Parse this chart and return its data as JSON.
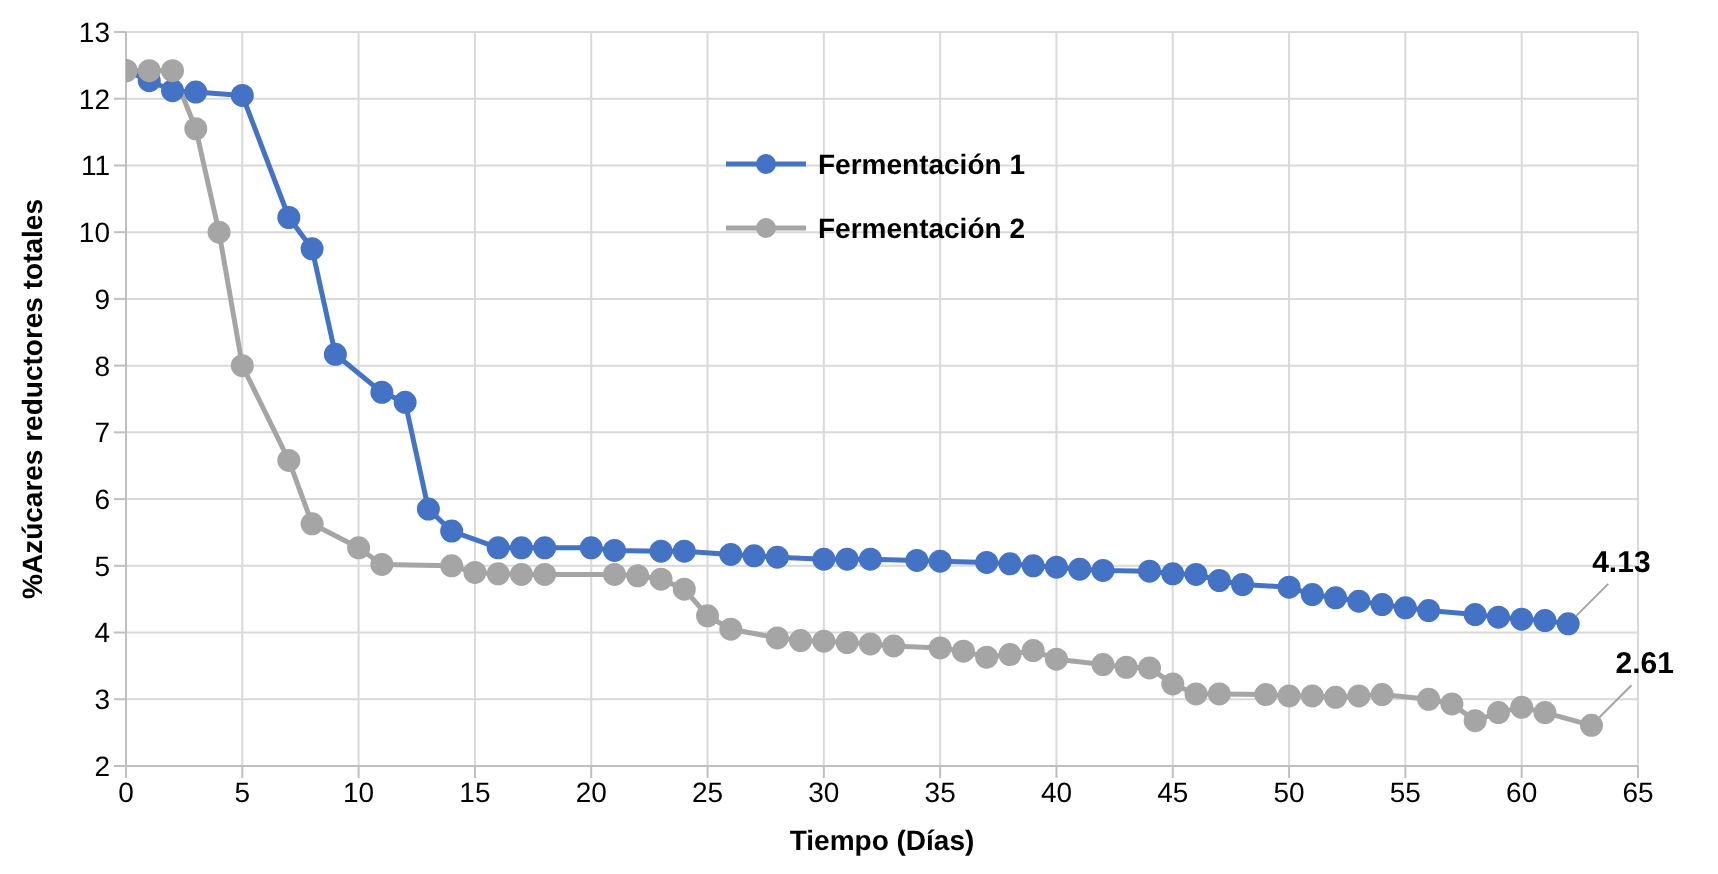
{
  "chart_data": {
    "type": "line",
    "xlabel": "Tiempo (Días)",
    "ylabel": "%Azúcares reductores totales",
    "xlim": [
      0,
      65
    ],
    "xticks": [
      0,
      5,
      10,
      15,
      20,
      25,
      30,
      35,
      40,
      45,
      50,
      55,
      60,
      65
    ],
    "ylim": [
      2,
      13
    ],
    "yticks": [
      2,
      3,
      4,
      5,
      6,
      7,
      8,
      9,
      10,
      11,
      12,
      13
    ],
    "grid": true,
    "legend": "top",
    "marker": "circle",
    "line_style": "solid",
    "series": [
      {
        "name": "Fermentación 1",
        "color": "#4472c4",
        "x": [
          0,
          1,
          2,
          3,
          5,
          7,
          8,
          9,
          11,
          12,
          13,
          14,
          16,
          17,
          18,
          20,
          21,
          23,
          24,
          26,
          27,
          28,
          30,
          31,
          32,
          34,
          35,
          37,
          38,
          39,
          40,
          41,
          42,
          44,
          45,
          46,
          47,
          48,
          50,
          51,
          52,
          53,
          54,
          55,
          56,
          58,
          59,
          60,
          61,
          62
        ],
        "values": [
          12.42,
          12.27,
          12.12,
          12.1,
          12.05,
          10.22,
          9.75,
          8.17,
          7.6,
          7.45,
          5.85,
          5.52,
          5.27,
          5.27,
          5.27,
          5.27,
          5.23,
          5.22,
          5.22,
          5.17,
          5.15,
          5.13,
          5.1,
          5.1,
          5.1,
          5.08,
          5.07,
          5.05,
          5.03,
          5.0,
          4.98,
          4.95,
          4.93,
          4.92,
          4.88,
          4.87,
          4.78,
          4.72,
          4.68,
          4.57,
          4.52,
          4.47,
          4.42,
          4.37,
          4.33,
          4.27,
          4.23,
          4.2,
          4.18,
          4.13
        ]
      },
      {
        "name": "Fermentación 2",
        "color": "#a5a5a5",
        "x": [
          0,
          1,
          2,
          3,
          4,
          5,
          7,
          8,
          10,
          11,
          14,
          15,
          16,
          17,
          18,
          21,
          22,
          23,
          24,
          25,
          26,
          28,
          29,
          30,
          31,
          32,
          33,
          35,
          36,
          37,
          38,
          39,
          40,
          42,
          43,
          44,
          45,
          46,
          47,
          49,
          50,
          51,
          52,
          53,
          54,
          56,
          57,
          58,
          59,
          60,
          61,
          63
        ],
        "values": [
          12.42,
          12.42,
          12.42,
          11.55,
          10.0,
          8.0,
          6.58,
          5.63,
          5.27,
          5.02,
          5.0,
          4.9,
          4.88,
          4.87,
          4.87,
          4.87,
          4.85,
          4.8,
          4.65,
          4.25,
          4.05,
          3.92,
          3.88,
          3.87,
          3.85,
          3.83,
          3.8,
          3.77,
          3.72,
          3.63,
          3.67,
          3.73,
          3.6,
          3.52,
          3.48,
          3.47,
          3.23,
          3.08,
          3.08,
          3.07,
          3.05,
          3.05,
          3.03,
          3.05,
          3.07,
          3.0,
          2.93,
          2.68,
          2.8,
          2.88,
          2.8,
          2.61
        ]
      }
    ],
    "annotations": [
      {
        "text": "4.13",
        "x": 62,
        "y": 4.13
      },
      {
        "text": "2.61",
        "x": 63,
        "y": 2.61
      }
    ]
  }
}
